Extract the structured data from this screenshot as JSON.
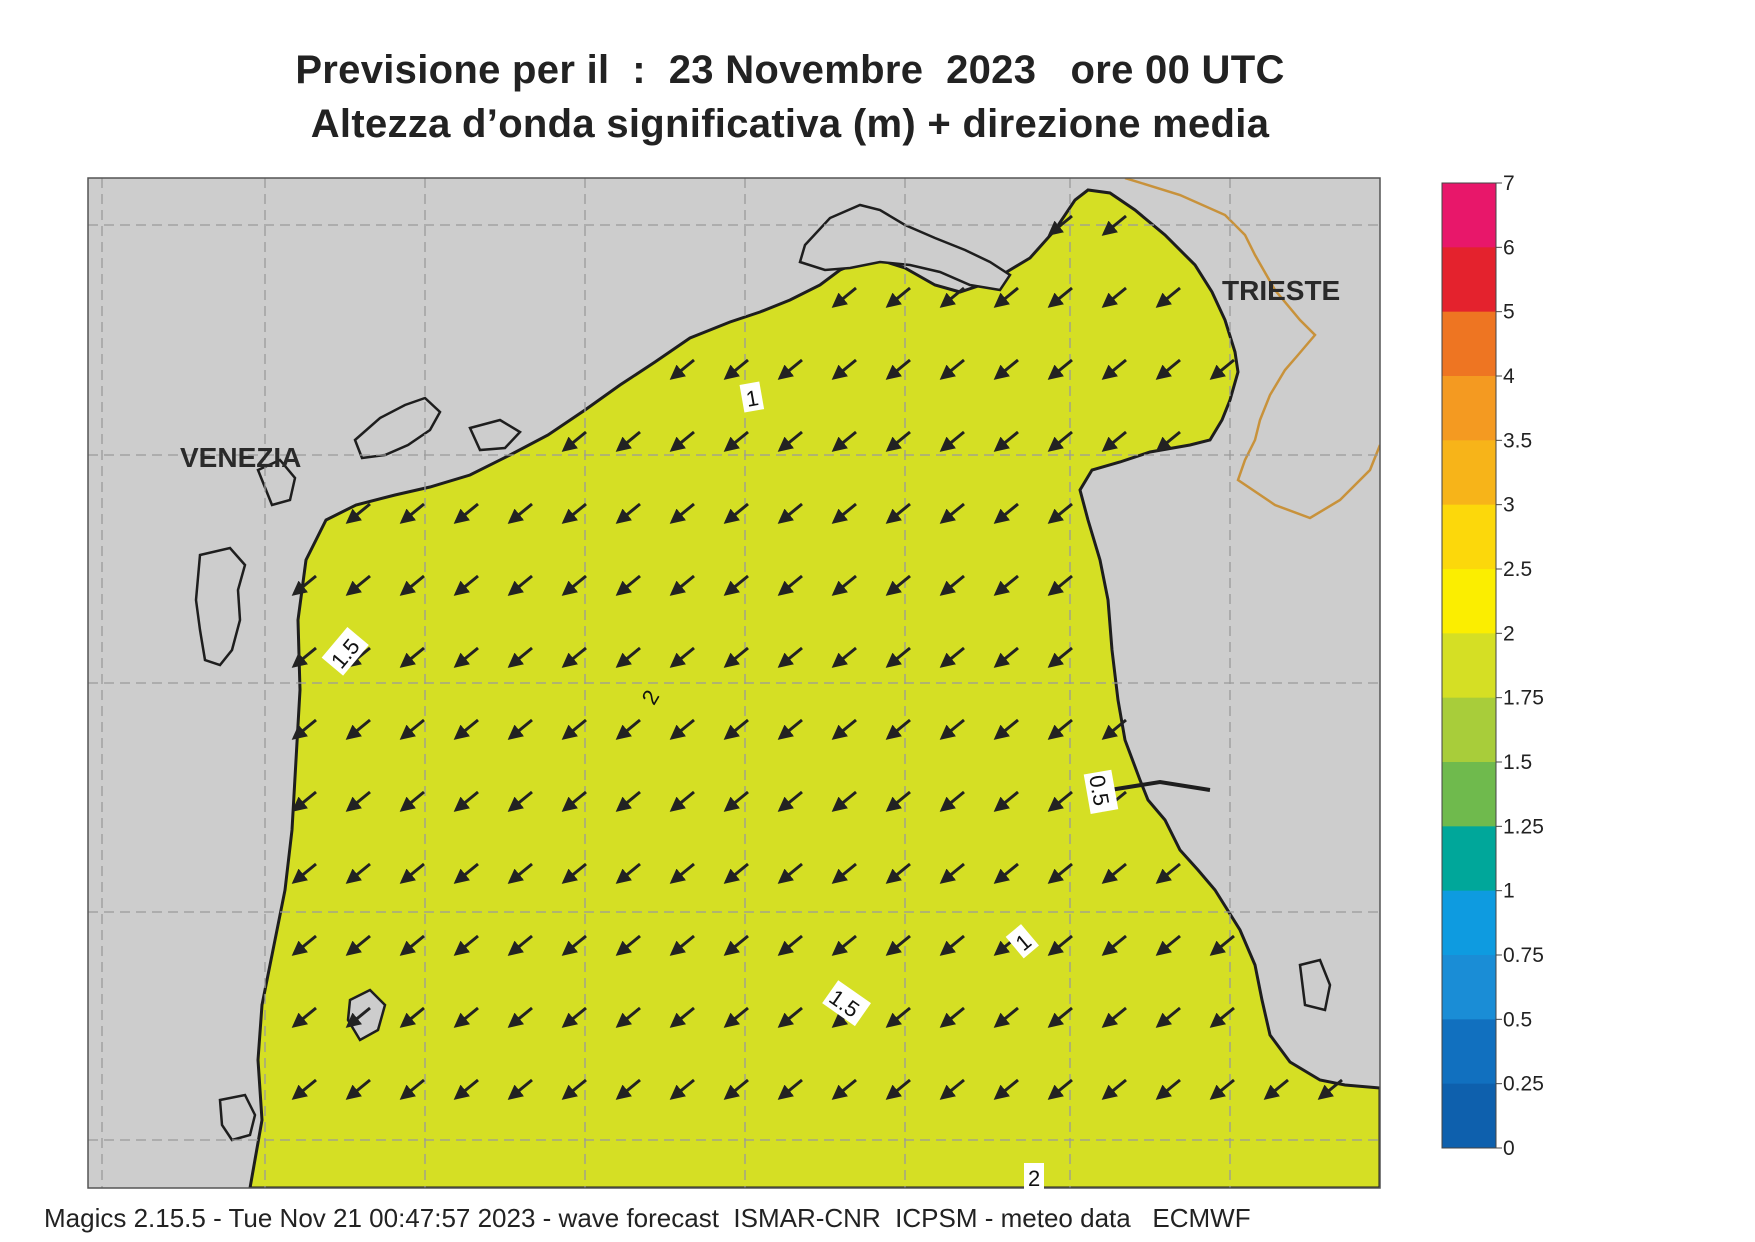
{
  "title": {
    "line1": "Previsione per il  :  23 Novembre  2023   ore 00 UTC",
    "line2": "Altezza d’onda significativa (m) + direzione media"
  },
  "places": {
    "city_west": "VENEZIA",
    "city_east": "TRIESTE"
  },
  "contour_labels": [
    "1",
    "1.5",
    "2",
    "0.5",
    "1",
    "1.5",
    "2"
  ],
  "colorbar": {
    "ticks": [
      "7",
      "6",
      "5",
      "4",
      "3.5",
      "3",
      "2.5",
      "2",
      "1.75",
      "1.5",
      "1.25",
      "1",
      "0.75",
      "0.5",
      "0.25",
      "0"
    ],
    "colors": [
      "#e8176a",
      "#e4222d",
      "#ee7522",
      "#f49a21",
      "#f7b419",
      "#fcd80b",
      "#fbee00",
      "#d5df24",
      "#a8cd3a",
      "#6fba4d",
      "#00a79a",
      "#0e9be0",
      "#1a8dd6",
      "#1170bf",
      "#0e60ad"
    ]
  },
  "legend_colors": {
    "land": "#cdcdcd",
    "coast": "#222222",
    "border": "#c8923b",
    "grid": "#9a9a9a"
  },
  "mean_direction": "from NE (arrows point to SW)",
  "footer": "Magics 2.15.5 - Tue Nov 21 00:47:57 2023 - wave forecast  ISMAR-CNR  ICPSM - meteo data   ECMWF"
}
